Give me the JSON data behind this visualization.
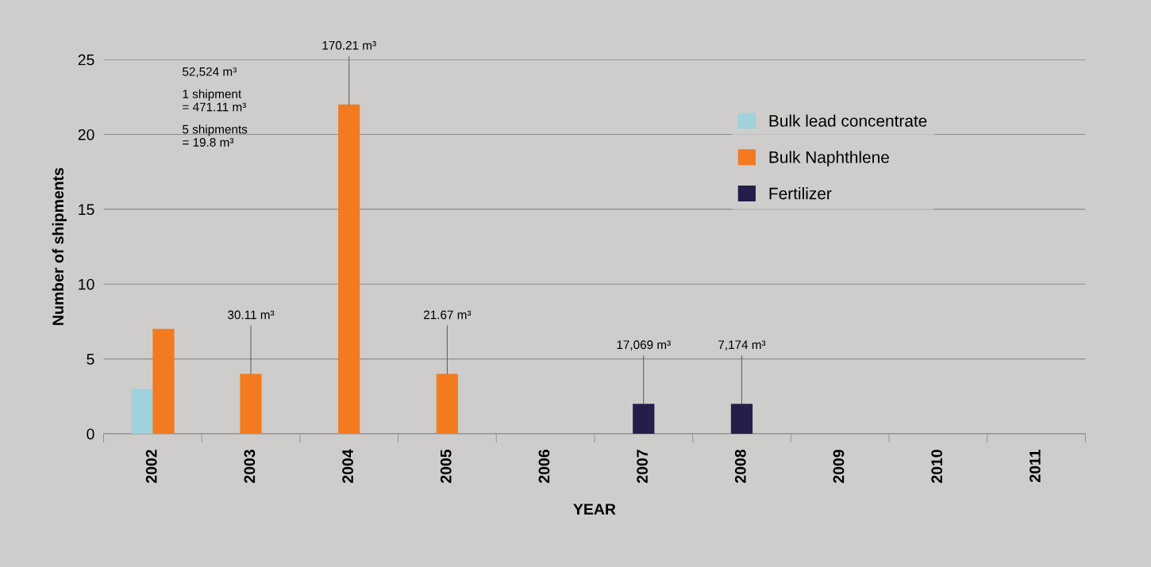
{
  "chart_data": {
    "type": "bar",
    "xlabel": "YEAR",
    "ylabel": "Number of shipments",
    "categories": [
      "2002",
      "2003",
      "2004",
      "2005",
      "2006",
      "2007",
      "2008",
      "2009",
      "2010",
      "2011"
    ],
    "series": [
      {
        "name": "Bulk lead concentrate",
        "color": "#9fd2dc",
        "values": [
          3,
          null,
          null,
          null,
          null,
          null,
          null,
          null,
          null,
          null
        ]
      },
      {
        "name": "Bulk Naphthlene",
        "color": "#f47a20",
        "values": [
          7,
          4,
          22,
          4,
          null,
          null,
          null,
          null,
          null,
          null
        ]
      },
      {
        "name": "Fertilizer",
        "color": "#251e4b",
        "values": [
          null,
          null,
          null,
          null,
          null,
          2,
          2,
          null,
          null,
          null
        ]
      }
    ],
    "ylim": [
      0,
      25
    ],
    "yticks": [
      0,
      5,
      10,
      15,
      20,
      25
    ],
    "grid": "y",
    "legend": "top right",
    "annotations": [
      "52,524 m³",
      "1 shipment\n= 471.11 m³",
      "5 shipments\n= 19.8 m³",
      {
        "text": "30.11 m³",
        "x": "2003",
        "y": 4
      },
      {
        "text": "170.21 m³",
        "x": "2004",
        "y": 22
      },
      {
        "text": "21.67 m³",
        "x": "2005",
        "y": 4
      },
      {
        "text": "17,069 m³",
        "x": "2007",
        "y": 2
      },
      {
        "text": "7,174 m³",
        "x": "2008",
        "y": 2
      }
    ]
  }
}
